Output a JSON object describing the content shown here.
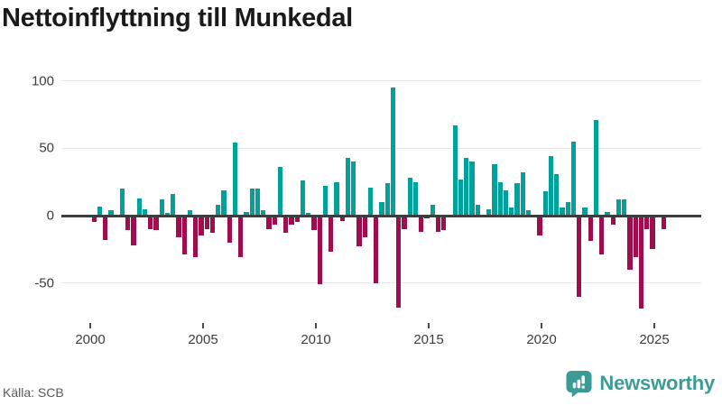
{
  "title": "Nettoinflyttning till Munkedal",
  "source": "Källa: SCB",
  "branding": {
    "logo_text": "Newsworthy",
    "logo_icon": "speech-bubble-bar-chart-icon",
    "brand_color": "#3b9c95"
  },
  "colors": {
    "positive_bar": "#00a19a",
    "negative_bar": "#a00d4c",
    "axis_line": "#3d3d3d",
    "gridline": "#e7e7e7",
    "tick_label": "#3d3d3d",
    "title": "#1a1a1a",
    "source": "#595959",
    "background": "#ffffff"
  },
  "chart_data": {
    "type": "bar",
    "title": "Nettoinflyttning till Munkedal",
    "xlabel": "",
    "ylabel": "",
    "x_unit": "quarter",
    "start_period": "2000Q1",
    "end_period": "2025Q2",
    "y_ticks": [
      100,
      50,
      0,
      -50
    ],
    "x_ticks": [
      2000,
      2005,
      2010,
      2015,
      2020,
      2025
    ],
    "ylim": [
      -75,
      105
    ],
    "grid": true,
    "legend": "none",
    "values": [
      -5,
      7,
      -18,
      4,
      0,
      20,
      -11,
      -22,
      13,
      5,
      -10,
      -11,
      12,
      2,
      16,
      -16,
      -29,
      4,
      -31,
      -15,
      -10,
      -13,
      8,
      19,
      -20,
      54,
      -31,
      3,
      20,
      20,
      4,
      -10,
      -7,
      36,
      -13,
      -7,
      -5,
      26,
      2,
      -11,
      -51,
      22,
      -27,
      25,
      -4,
      43,
      40,
      -23,
      -16,
      21,
      -50,
      10,
      24,
      95,
      -68,
      -10,
      28,
      25,
      -12,
      -2,
      8,
      -12,
      -11,
      0,
      67,
      27,
      43,
      40,
      8,
      0,
      5,
      38,
      25,
      19,
      6,
      24,
      32,
      4,
      0,
      -15,
      18,
      44,
      31,
      6,
      10,
      55,
      -60,
      6,
      -19,
      71,
      -29,
      3,
      -7,
      12,
      12,
      -40,
      -31,
      -69,
      -10,
      -25,
      0,
      -10
    ]
  }
}
